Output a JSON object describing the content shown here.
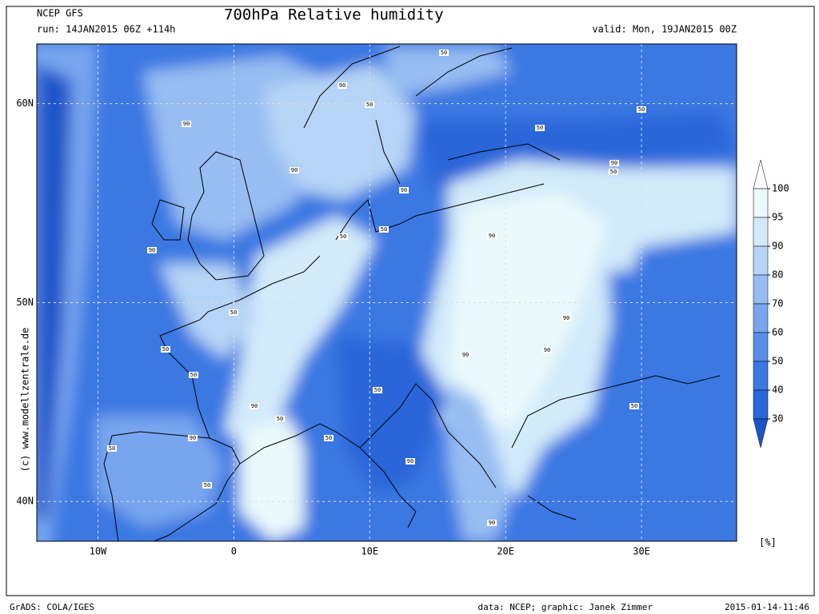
{
  "header": {
    "model": "NCEP GFS",
    "run": "run: 14JAN2015 06Z +114h",
    "title": "700hPa Relative humidity",
    "valid": "valid: Mon, 19JAN2015 00Z"
  },
  "map": {
    "lonlim": [
      -14.5,
      37
    ],
    "latlim": [
      38,
      63
    ],
    "xticks": [
      {
        "value": -10,
        "label": "10W"
      },
      0,
      {
        "value": 10,
        "label": "10E"
      },
      {
        "value": 20,
        "label": "20E"
      },
      {
        "value": 30,
        "label": "30E"
      }
    ],
    "yticks": [
      {
        "value": 60,
        "label": "60N"
      },
      {
        "value": 50,
        "label": "50N"
      },
      {
        "value": 40,
        "label": "40N"
      }
    ],
    "grid": true,
    "contour_labels": [
      50,
      90,
      50,
      90,
      50,
      50,
      90,
      90,
      50,
      90,
      50,
      50,
      90,
      90,
      50,
      90,
      50,
      90,
      90,
      50,
      50,
      90,
      50,
      50,
      90,
      50,
      50,
      90,
      50,
      90
    ],
    "watermark": "(c) www.modellzentrale.de"
  },
  "legend": {
    "levels": [
      100,
      95,
      90,
      80,
      70,
      60,
      50,
      40,
      30
    ],
    "unit": "[%]",
    "colors": [
      "#1c55c9",
      "#2a66da",
      "#3b78e2",
      "#5a8fe8",
      "#78a6ee",
      "#97bdf2",
      "#b6d4f6",
      "#d2eafa",
      "#eaf9fc",
      "#ffffff"
    ]
  },
  "footer": {
    "software": "GrADS: COLA/IGES",
    "credit": "data: NCEP; graphic: Janek Zimmer",
    "timestamp": "2015-01-14-11:46"
  }
}
